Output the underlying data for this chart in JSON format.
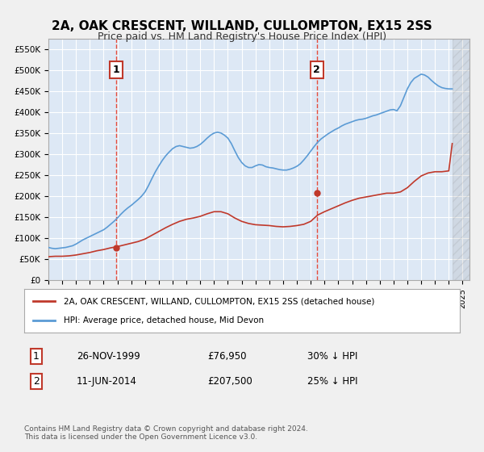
{
  "title": "2A, OAK CRESCENT, WILLAND, CULLOMPTON, EX15 2SS",
  "subtitle": "Price paid vs. HM Land Registry's House Price Index (HPI)",
  "background_color": "#e8f0f8",
  "plot_bg_color": "#dde8f5",
  "ylim": [
    0,
    575000
  ],
  "yticks": [
    0,
    50000,
    100000,
    150000,
    200000,
    250000,
    300000,
    350000,
    400000,
    450000,
    500000,
    550000
  ],
  "ytick_labels": [
    "£0",
    "£50K",
    "£100K",
    "£150K",
    "£200K",
    "£250K",
    "£300K",
    "£350K",
    "£400K",
    "£450K",
    "£500K",
    "£550K"
  ],
  "xlim_start": 1995.0,
  "xlim_end": 2025.5,
  "hpi_color": "#5b9bd5",
  "price_color": "#c0392b",
  "vline_color": "#e74c3c",
  "marker1_date": 1999.9,
  "marker2_date": 2014.44,
  "marker1_price": 76950,
  "marker2_price": 207500,
  "legend_label1": "2A, OAK CRESCENT, WILLAND, CULLOMPTON, EX15 2SS (detached house)",
  "legend_label2": "HPI: Average price, detached house, Mid Devon",
  "note1_label": "1",
  "note1_date": "26-NOV-1999",
  "note1_price": "£76,950",
  "note1_hpi": "30% ↓ HPI",
  "note2_label": "2",
  "note2_date": "11-JUN-2014",
  "note2_price": "£207,500",
  "note2_hpi": "25% ↓ HPI",
  "footer": "Contains HM Land Registry data © Crown copyright and database right 2024.\nThis data is licensed under the Open Government Licence v3.0.",
  "hpi_data_x": [
    1995.0,
    1995.25,
    1995.5,
    1995.75,
    1996.0,
    1996.25,
    1996.5,
    1996.75,
    1997.0,
    1997.25,
    1997.5,
    1997.75,
    1998.0,
    1998.25,
    1998.5,
    1998.75,
    1999.0,
    1999.25,
    1999.5,
    1999.75,
    2000.0,
    2000.25,
    2000.5,
    2000.75,
    2001.0,
    2001.25,
    2001.5,
    2001.75,
    2002.0,
    2002.25,
    2002.5,
    2002.75,
    2003.0,
    2003.25,
    2003.5,
    2003.75,
    2004.0,
    2004.25,
    2004.5,
    2004.75,
    2005.0,
    2005.25,
    2005.5,
    2005.75,
    2006.0,
    2006.25,
    2006.5,
    2006.75,
    2007.0,
    2007.25,
    2007.5,
    2007.75,
    2008.0,
    2008.25,
    2008.5,
    2008.75,
    2009.0,
    2009.25,
    2009.5,
    2009.75,
    2010.0,
    2010.25,
    2010.5,
    2010.75,
    2011.0,
    2011.25,
    2011.5,
    2011.75,
    2012.0,
    2012.25,
    2012.5,
    2012.75,
    2013.0,
    2013.25,
    2013.5,
    2013.75,
    2014.0,
    2014.25,
    2014.5,
    2014.75,
    2015.0,
    2015.25,
    2015.5,
    2015.75,
    2016.0,
    2016.25,
    2016.5,
    2016.75,
    2017.0,
    2017.25,
    2017.5,
    2017.75,
    2018.0,
    2018.25,
    2018.5,
    2018.75,
    2019.0,
    2019.25,
    2019.5,
    2019.75,
    2020.0,
    2020.25,
    2020.5,
    2020.75,
    2021.0,
    2021.25,
    2021.5,
    2021.75,
    2022.0,
    2022.25,
    2022.5,
    2022.75,
    2023.0,
    2023.25,
    2023.5,
    2023.75,
    2024.0,
    2024.25
  ],
  "hpi_data_y": [
    78000,
    76000,
    75000,
    76000,
    77000,
    78000,
    80000,
    82000,
    86000,
    91000,
    96000,
    100000,
    104000,
    108000,
    112000,
    116000,
    120000,
    126000,
    133000,
    140000,
    148000,
    157000,
    165000,
    172000,
    178000,
    185000,
    192000,
    200000,
    210000,
    225000,
    242000,
    258000,
    272000,
    285000,
    296000,
    305000,
    313000,
    318000,
    320000,
    318000,
    316000,
    314000,
    315000,
    318000,
    323000,
    330000,
    338000,
    345000,
    350000,
    352000,
    350000,
    345000,
    338000,
    325000,
    308000,
    292000,
    280000,
    272000,
    268000,
    268000,
    272000,
    275000,
    274000,
    270000,
    268000,
    267000,
    265000,
    263000,
    262000,
    262000,
    264000,
    267000,
    271000,
    277000,
    286000,
    296000,
    307000,
    318000,
    328000,
    336000,
    342000,
    348000,
    353000,
    358000,
    362000,
    367000,
    371000,
    374000,
    377000,
    380000,
    382000,
    383000,
    385000,
    388000,
    391000,
    393000,
    396000,
    399000,
    402000,
    405000,
    406000,
    403000,
    415000,
    435000,
    455000,
    470000,
    480000,
    485000,
    490000,
    488000,
    483000,
    475000,
    468000,
    462000,
    458000,
    456000,
    455000,
    455000
  ],
  "price_data_x": [
    1995.0,
    1995.5,
    1996.0,
    1996.5,
    1997.0,
    1997.5,
    1998.0,
    1998.5,
    1999.0,
    1999.5,
    2000.0,
    2000.5,
    2001.0,
    2001.5,
    2002.0,
    2002.5,
    2003.0,
    2003.5,
    2004.0,
    2004.5,
    2005.0,
    2005.5,
    2006.0,
    2006.5,
    2007.0,
    2007.5,
    2008.0,
    2008.5,
    2009.0,
    2009.5,
    2010.0,
    2010.5,
    2011.0,
    2011.5,
    2012.0,
    2012.5,
    2013.0,
    2013.5,
    2014.0,
    2014.5,
    2015.0,
    2015.5,
    2016.0,
    2016.5,
    2017.0,
    2017.5,
    2018.0,
    2018.5,
    2019.0,
    2019.5,
    2020.0,
    2020.5,
    2021.0,
    2021.5,
    2022.0,
    2022.5,
    2023.0,
    2023.5,
    2024.0,
    2024.25
  ],
  "price_data_y": [
    56000,
    57000,
    57000,
    58000,
    60000,
    63000,
    66000,
    70000,
    73000,
    77000,
    80000,
    84000,
    88000,
    92000,
    98000,
    107000,
    116000,
    125000,
    133000,
    140000,
    145000,
    148000,
    152000,
    158000,
    163000,
    163000,
    158000,
    148000,
    140000,
    135000,
    132000,
    131000,
    130000,
    128000,
    127000,
    128000,
    130000,
    133000,
    140000,
    155000,
    163000,
    170000,
    177000,
    184000,
    190000,
    195000,
    198000,
    201000,
    204000,
    207000,
    207000,
    210000,
    220000,
    235000,
    248000,
    255000,
    258000,
    258000,
    260000,
    325000
  ]
}
